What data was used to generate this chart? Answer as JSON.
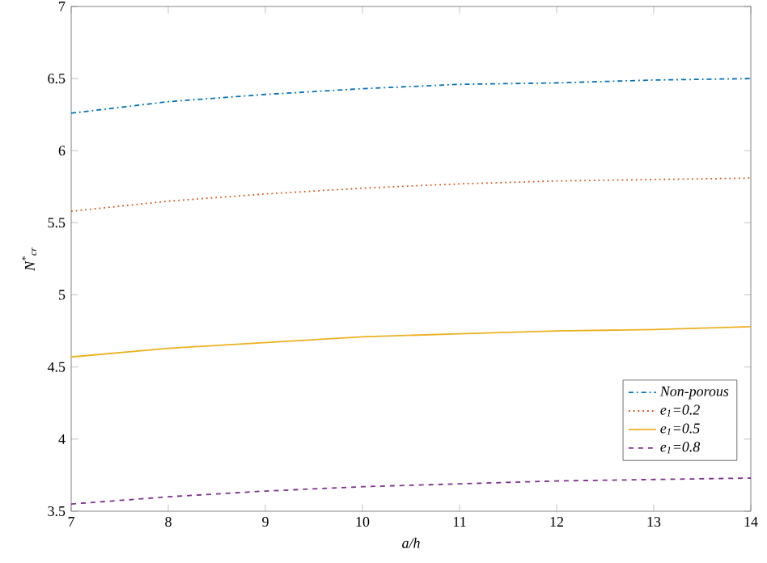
{
  "chart_data": {
    "type": "line",
    "xlabel": "a/h",
    "ylabel": "N$^{*}$$_{cr}$",
    "x": [
      7,
      8,
      9,
      10,
      11,
      12,
      13,
      14
    ],
    "series": [
      {
        "name": "Non-porous",
        "color": "#0072bd",
        "line_style": "dashdot",
        "values": [
          6.26,
          6.34,
          6.39,
          6.43,
          6.46,
          6.47,
          6.49,
          6.5
        ]
      },
      {
        "name": "e$_{1}$=0.2",
        "color": "#d95319",
        "line_style": "dotted",
        "values": [
          5.58,
          5.65,
          5.7,
          5.74,
          5.77,
          5.79,
          5.8,
          5.81
        ]
      },
      {
        "name": "e$_{1}$=0.5",
        "color": "#edb120",
        "line_style": "solid",
        "values": [
          4.57,
          4.63,
          4.67,
          4.71,
          4.73,
          4.75,
          4.76,
          4.78
        ]
      },
      {
        "name": "e$_{1}$=0.8",
        "color": "#7e2f8e",
        "line_style": "dashed",
        "values": [
          3.55,
          3.6,
          3.64,
          3.67,
          3.69,
          3.71,
          3.72,
          3.73
        ]
      }
    ],
    "xlim": [
      7,
      14
    ],
    "ylim": [
      3.5,
      7
    ],
    "xticks": [
      7,
      8,
      9,
      10,
      11,
      12,
      13,
      14
    ],
    "yticks": [
      3.5,
      4,
      4.5,
      5,
      5.5,
      6,
      6.5,
      7
    ],
    "legend": "bottom right",
    "grid": false,
    "marker": "none"
  }
}
